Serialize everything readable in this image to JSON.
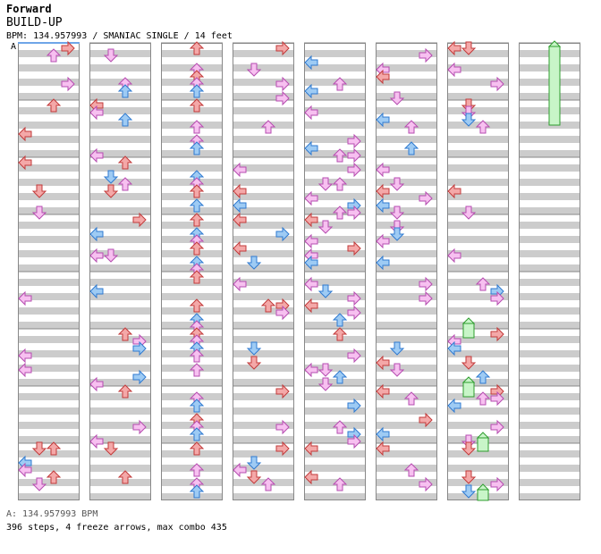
{
  "header": {
    "direction": "Forward",
    "song_title": "BUILD-UP",
    "info": "BPM: 134.957993 / SMANIAC SINGLE / 14 feet"
  },
  "chart": {
    "bpm_marker_label": "A",
    "columns": 8,
    "measures_per_column": 8,
    "colors": {
      "stripe": "#cccccc",
      "left_right": "#f4a8a8",
      "left_right_stroke": "#c23a3a",
      "up_down_red": "#f4a8a8",
      "blue": "#9ecbf4",
      "blue_stroke": "#2f7ad0",
      "pink": "#f7c0f0",
      "pink_stroke": "#b64cb0",
      "freeze": "#c8f5c8",
      "freeze_stroke": "#2e9d2e",
      "marker": "#6fa6e8"
    }
  },
  "footer": {
    "bpm_line": "A: 134.957993 BPM",
    "stats": "396 steps, 4 freeze arrows, max combo 435"
  }
}
